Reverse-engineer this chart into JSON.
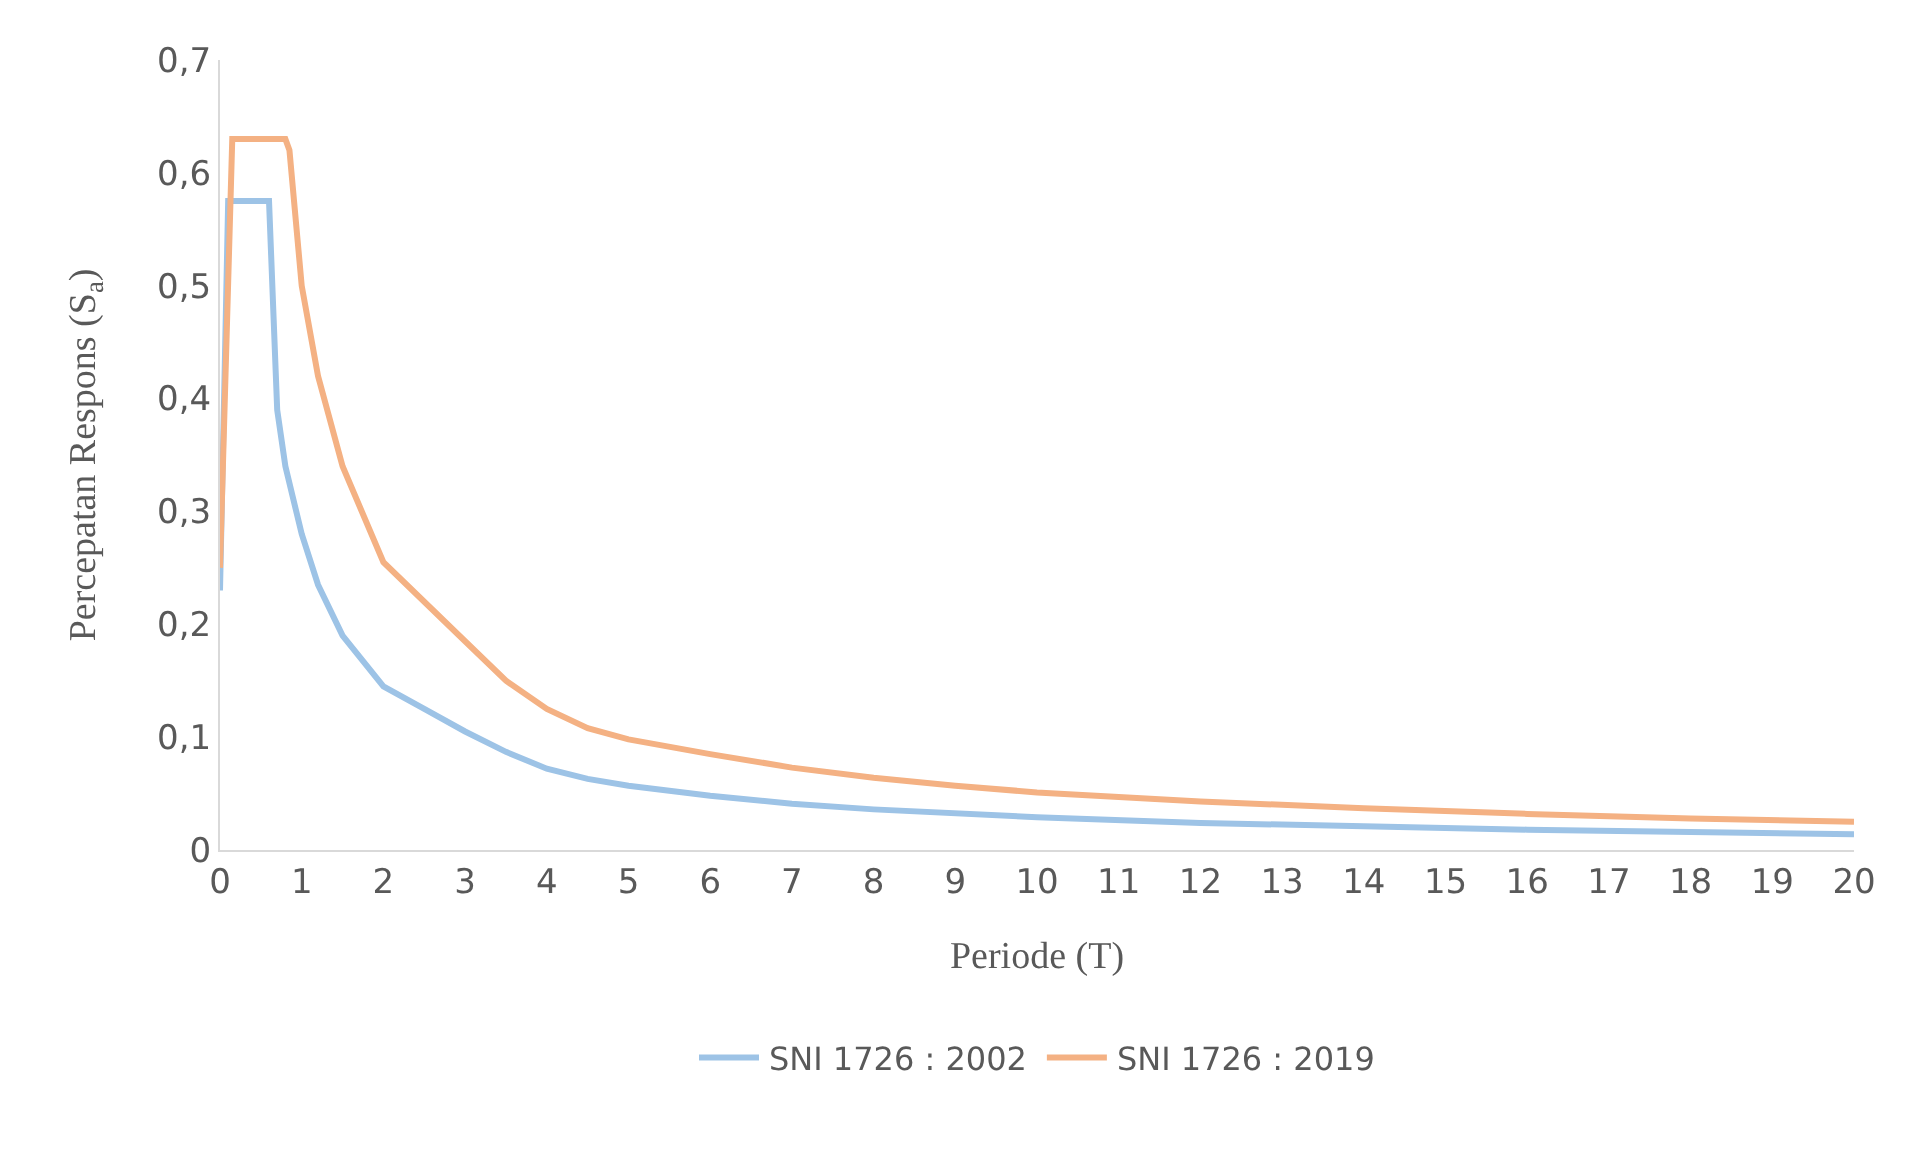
{
  "chart_data": {
    "type": "line",
    "xlabel": "Periode (T)",
    "ylabel": "Percepatan Respons (S$_{a}$)",
    "xlim": [
      0,
      20
    ],
    "xticks": [
      0,
      1,
      2,
      3,
      4,
      5,
      6,
      7,
      8,
      9,
      10,
      11,
      12,
      13,
      14,
      15,
      16,
      17,
      18,
      19,
      20
    ],
    "ylim": [
      0,
      0.7
    ],
    "yticks": [
      {
        "value": 0,
        "label": "0"
      },
      {
        "value": 0.1,
        "label": "0,1"
      },
      {
        "value": 0.2,
        "label": "0,2"
      },
      {
        "value": 0.3,
        "label": "0,3"
      },
      {
        "value": 0.4,
        "label": "0,4"
      },
      {
        "value": 0.5,
        "label": "0,5"
      },
      {
        "value": 0.6,
        "label": "0,6"
      },
      {
        "value": 0.7,
        "label": "0,7"
      }
    ],
    "grid": false,
    "legend": "bottom",
    "marker": "none",
    "line_style": "solid",
    "series": [
      {
        "name": "SNI 1726 : 2002",
        "color": "#9dc3e6",
        "x": [
          0,
          0.05,
          0.1,
          0.6,
          0.7,
          0.8,
          1,
          1.2,
          1.5,
          2,
          2.5,
          3,
          3.5,
          4,
          4.5,
          5,
          6,
          7,
          8,
          10,
          12,
          14,
          16,
          18,
          20
        ],
        "values": [
          0.23,
          0.4,
          0.575,
          0.575,
          0.39,
          0.34,
          0.28,
          0.235,
          0.19,
          0.145,
          0.125,
          0.105,
          0.087,
          0.072,
          0.063,
          0.057,
          0.048,
          0.041,
          0.036,
          0.029,
          0.024,
          0.021,
          0.018,
          0.016,
          0.014
        ]
      },
      {
        "name": "SNI 1726 : 2019",
        "color": "#f4b183",
        "x": [
          0,
          0.15,
          0.8,
          0.85,
          1,
          1.2,
          1.5,
          2,
          2.5,
          3,
          3.5,
          4,
          4.5,
          5,
          6,
          7,
          8,
          9,
          10,
          12,
          14,
          16,
          18,
          20
        ],
        "values": [
          0.25,
          0.63,
          0.63,
          0.62,
          0.5,
          0.42,
          0.34,
          0.255,
          0.22,
          0.185,
          0.15,
          0.125,
          0.108,
          0.098,
          0.085,
          0.073,
          0.064,
          0.057,
          0.051,
          0.043,
          0.037,
          0.032,
          0.028,
          0.025
        ]
      }
    ]
  }
}
